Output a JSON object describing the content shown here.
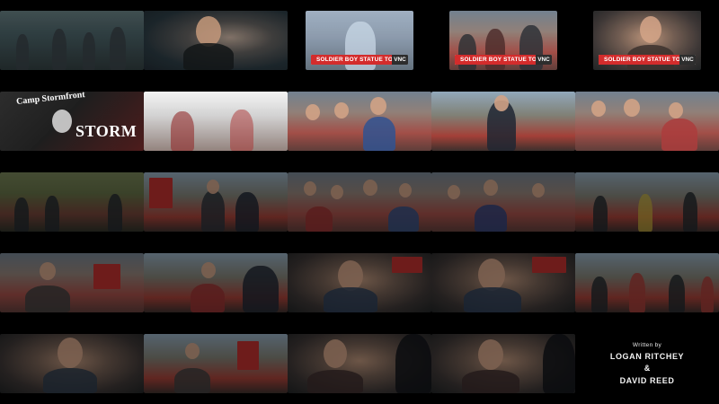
{
  "frames": {
    "r1c1": {
      "scene": "street"
    },
    "r1c2": {
      "scene": "closeup"
    },
    "r1c3": {
      "scene": "news",
      "ticker": "SOLDIER BOY STATUE TOPPLED",
      "network": "VNC"
    },
    "r1c4": {
      "scene": "news",
      "ticker": "SOLDIER BOY STATUE TOPPLED",
      "network": "VNC"
    },
    "r1c5": {
      "scene": "news",
      "ticker": "SOLDIER BOY STATUE TOPPLED",
      "network": "VNC"
    },
    "r2c1": {
      "scene": "sign",
      "sign_line1": "Camp Stormfront",
      "sign_line2": "STORM"
    },
    "r2c2": {
      "scene": "flag"
    },
    "r2c3": {
      "scene": "crowd"
    },
    "r2c4": {
      "scene": "rally"
    },
    "r2c5": {
      "scene": "crowd"
    },
    "r3c1": {
      "scene": "park"
    },
    "r3c2": {
      "scene": "rally"
    },
    "r3c3": {
      "scene": "crowd"
    },
    "r3c4": {
      "scene": "crowd"
    },
    "r3c5": {
      "scene": "rally"
    },
    "r4c1": {
      "scene": "crowd"
    },
    "r4c2": {
      "scene": "rally"
    },
    "r4c3": {
      "scene": "face"
    },
    "r4c4": {
      "scene": "face"
    },
    "r4c5": {
      "scene": "rally"
    },
    "r5c1": {
      "scene": "face"
    },
    "r5c2": {
      "scene": "rally"
    },
    "r5c3": {
      "scene": "face"
    },
    "r5c4": {
      "scene": "face"
    }
  },
  "credits": {
    "label": "Written by",
    "name1": "LOGAN RITCHEY",
    "amp": "&",
    "name2": "DAVID REED"
  }
}
